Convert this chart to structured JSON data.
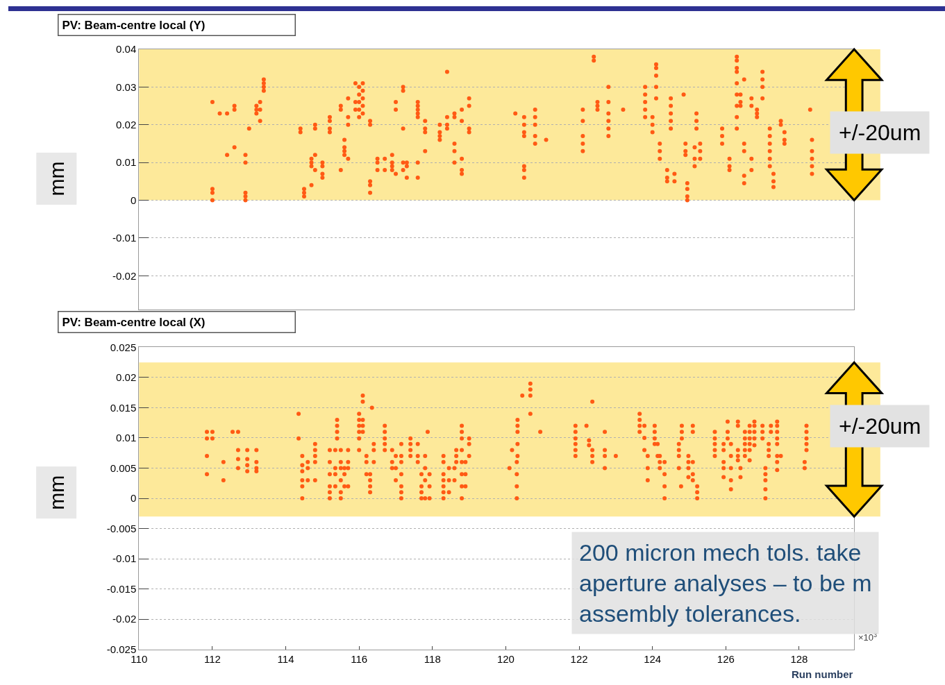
{
  "chart_data": [
    {
      "type": "scatter",
      "title": "PV: Beam-centre local (Y)",
      "ylabel": "mm",
      "color": "#ff5a14",
      "marker": "circle",
      "grid": "y",
      "tick_labels": "y",
      "xlim": [
        110,
        129.5
      ],
      "ylim": [
        -0.029,
        0.04
      ],
      "yticks": [
        0.04,
        0.03,
        0.02,
        0.01,
        0,
        -0.01,
        -0.02
      ],
      "bands": [
        {
          "axis": "y",
          "from": 0,
          "to": 0.04,
          "label": null,
          "color": "#fde99a"
        }
      ],
      "annotations": [
        "+/-20um"
      ],
      "x": [
        112.0,
        112.0,
        112.0,
        112.0,
        112.2,
        112.4,
        112.4,
        112.6,
        112.6,
        112.6,
        112.9,
        112.9,
        112.9,
        112.9,
        112.9,
        113.0,
        113.2,
        113.2,
        113.2,
        113.3,
        113.3,
        113.3,
        113.4,
        113.4,
        113.4,
        113.4,
        114.5,
        114.5,
        114.5,
        114.4,
        114.4,
        114.7,
        114.7,
        114.7,
        114.7,
        114.8,
        114.8,
        114.8,
        114.8,
        115.0,
        115.0,
        115.0,
        115.0,
        115.2,
        115.2,
        115.2,
        115.2,
        115.5,
        115.5,
        115.5,
        115.6,
        115.6,
        115.6,
        115.6,
        115.7,
        115.7,
        115.7,
        115.7,
        115.9,
        115.9,
        115.9,
        116.0,
        116.0,
        116.0,
        116.0,
        116.0,
        116.1,
        116.1,
        116.1,
        116.1,
        116.1,
        116.3,
        116.3,
        116.3,
        116.3,
        116.3,
        116.5,
        116.5,
        116.5,
        116.7,
        116.7,
        116.9,
        116.9,
        116.9,
        116.9,
        117.0,
        117.0,
        117.0,
        117.2,
        117.2,
        117.2,
        117.2,
        117.2,
        117.3,
        117.3,
        117.3,
        117.6,
        117.6,
        117.6,
        117.6,
        117.6,
        117.6,
        117.6,
        117.8,
        117.8,
        117.8,
        117.8,
        118.2,
        118.2,
        118.2,
        118.2,
        118.4,
        118.4,
        118.4,
        118.4,
        118.6,
        118.6,
        118.6,
        118.6,
        118.6,
        118.8,
        118.8,
        118.8,
        118.8,
        118.8,
        119.0,
        119.0,
        119.0,
        119.0,
        120.26,
        120.5,
        120.5,
        120.5,
        120.5,
        120.5,
        120.5,
        120.5,
        120.8,
        120.8,
        120.8,
        120.8,
        120.8,
        121.1,
        122.1,
        122.1,
        122.1,
        122.1,
        122.1,
        122.4,
        122.4,
        122.5,
        122.5,
        122.5,
        122.8,
        122.8,
        122.8,
        122.8,
        122.8,
        122.8,
        123.2,
        123.8,
        123.8,
        123.8,
        123.8,
        123.8,
        124.0,
        124.0,
        124.0,
        124.1,
        124.1,
        124.1,
        124.1,
        124.1,
        124.2,
        124.2,
        124.2,
        124.4,
        124.4,
        124.4,
        124.5,
        124.5,
        124.5,
        124.5,
        124.5,
        124.6,
        124.6,
        124.85,
        124.9,
        124.9,
        124.9,
        124.95,
        124.95,
        124.95,
        124.95,
        125.15,
        125.15,
        125.15,
        125.2,
        125.2,
        125.2,
        125.3,
        125.3,
        125.3,
        125.9,
        125.9,
        125.9,
        126.1,
        126.1,
        126.1,
        126.3,
        126.3,
        126.3,
        126.3,
        126.3,
        126.3,
        126.3,
        126.3,
        126.3,
        126.4,
        126.4,
        126.4,
        126.5,
        126.5,
        126.5,
        126.5,
        126.5,
        126.7,
        126.7,
        126.7,
        126.7,
        126.85,
        126.85,
        126.85,
        127.0,
        127.0,
        127.0,
        127.0,
        127.2,
        127.2,
        127.2,
        127.2,
        127.2,
        127.2,
        127.3,
        127.3,
        127.3,
        127.5,
        127.5,
        127.6,
        127.6,
        127.6,
        128.3,
        128.35,
        128.35,
        128.35,
        128.35,
        128.35
      ],
      "values": [
        0.026,
        0.003,
        0.002,
        0.0,
        0.023,
        0.012,
        0.023,
        0.014,
        0.024,
        0.025,
        0.012,
        0.01,
        0.002,
        0.001,
        0.0,
        0.019,
        0.023,
        0.024,
        0.025,
        0.021,
        0.026,
        0.024,
        0.029,
        0.03,
        0.031,
        0.032,
        0.003,
        0.002,
        0.001,
        0.019,
        0.018,
        0.011,
        0.01,
        0.009,
        0.004,
        0.019,
        0.02,
        0.012,
        0.008,
        0.01,
        0.009,
        0.007,
        0.006,
        0.021,
        0.022,
        0.019,
        0.018,
        0.025,
        0.024,
        0.008,
        0.016,
        0.014,
        0.013,
        0.012,
        0.027,
        0.022,
        0.02,
        0.011,
        0.031,
        0.026,
        0.024,
        0.03,
        0.028,
        0.026,
        0.024,
        0.022,
        0.031,
        0.029,
        0.027,
        0.025,
        0.023,
        0.021,
        0.02,
        0.005,
        0.004,
        0.002,
        0.011,
        0.01,
        0.008,
        0.011,
        0.008,
        0.012,
        0.01,
        0.009,
        0.008,
        0.026,
        0.024,
        0.007,
        0.03,
        0.029,
        0.019,
        0.01,
        0.008,
        0.01,
        0.009,
        0.006,
        0.026,
        0.025,
        0.024,
        0.023,
        0.022,
        0.01,
        0.006,
        0.021,
        0.019,
        0.018,
        0.013,
        0.02,
        0.018,
        0.017,
        0.016,
        0.034,
        0.022,
        0.02,
        0.019,
        0.023,
        0.022,
        0.015,
        0.013,
        0.01,
        0.024,
        0.021,
        0.011,
        0.008,
        0.007,
        0.027,
        0.025,
        0.019,
        0.018,
        0.023,
        0.022,
        0.02,
        0.018,
        0.017,
        0.009,
        0.008,
        0.006,
        0.024,
        0.022,
        0.02,
        0.017,
        0.015,
        0.016,
        0.024,
        0.021,
        0.017,
        0.015,
        0.013,
        0.038,
        0.037,
        0.026,
        0.025,
        0.024,
        0.03,
        0.026,
        0.023,
        0.021,
        0.019,
        0.017,
        0.024,
        0.03,
        0.028,
        0.026,
        0.024,
        0.022,
        0.022,
        0.02,
        0.018,
        0.036,
        0.035,
        0.033,
        0.03,
        0.027,
        0.015,
        0.013,
        0.011,
        0.008,
        0.006,
        0.005,
        0.027,
        0.025,
        0.023,
        0.021,
        0.019,
        0.007,
        0.005,
        0.028,
        0.015,
        0.013,
        0.012,
        0.0045,
        0.003,
        0.001,
        0.0,
        0.014,
        0.011,
        0.009,
        0.023,
        0.021,
        0.019,
        0.015,
        0.013,
        0.011,
        0.019,
        0.017,
        0.015,
        0.011,
        0.009,
        0.008,
        0.038,
        0.037,
        0.035,
        0.034,
        0.031,
        0.028,
        0.025,
        0.022,
        0.019,
        0.028,
        0.026,
        0.025,
        0.032,
        0.015,
        0.013,
        0.0065,
        0.0045,
        0.027,
        0.025,
        0.011,
        0.008,
        0.024,
        0.023,
        0.022,
        0.034,
        0.032,
        0.03,
        0.027,
        0.019,
        0.017,
        0.015,
        0.013,
        0.011,
        0.009,
        0.007,
        0.005,
        0.0035,
        0.021,
        0.02,
        0.018,
        0.016,
        0.015,
        0.024,
        0.016,
        0.013,
        0.011,
        0.009,
        0.007
      ]
    },
    {
      "type": "scatter",
      "title": "PV: Beam-centre local (X)",
      "ylabel": "mm",
      "xlabel": "Run number",
      "color": "#ff5a14",
      "marker": "circle",
      "grid": "y",
      "xlim": [
        110,
        129.5
      ],
      "xticks": [
        110,
        112,
        114,
        116,
        118,
        120,
        122,
        124,
        126,
        128
      ],
      "ylim": [
        -0.025,
        0.025
      ],
      "yticks": [
        0.025,
        0.02,
        0.015,
        0.01,
        0.005,
        0,
        -0.005,
        -0.01,
        -0.015,
        -0.02,
        -0.025
      ],
      "bands": [
        {
          "axis": "y",
          "from": -0.003,
          "to": 0.0225,
          "label": null,
          "color": "#fde99a"
        }
      ],
      "annotations": [
        "+/-20um",
        "×10$^{3}$",
        "200 micron mech tols. take\naperture analyses – to be m\nassembly tolerances."
      ],
      "x": [
        111.85,
        111.85,
        111.85,
        111.85,
        112.0,
        112.0,
        112.3,
        112.3,
        112.55,
        112.7,
        112.7,
        112.7,
        112.7,
        112.95,
        112.95,
        112.95,
        112.95,
        113.2,
        113.2,
        113.2,
        113.2,
        114.35,
        114.35,
        114.45,
        114.45,
        114.45,
        114.45,
        114.45,
        114.45,
        114.6,
        114.6,
        114.6,
        114.8,
        114.8,
        114.8,
        114.8,
        114.8,
        115.2,
        115.2,
        115.2,
        115.2,
        115.2,
        115.2,
        115.35,
        115.35,
        115.35,
        115.35,
        115.4,
        115.4,
        115.4,
        115.4,
        115.5,
        115.5,
        115.5,
        115.5,
        115.5,
        115.5,
        115.6,
        115.6,
        115.6,
        115.7,
        115.7,
        115.7,
        115.7,
        116.0,
        116.0,
        116.0,
        116.0,
        116.0,
        116.0,
        116.1,
        116.1,
        116.1,
        116.1,
        116.1,
        116.2,
        116.2,
        116.2,
        116.3,
        116.3,
        116.3,
        116.3,
        116.35,
        116.4,
        116.4,
        116.4,
        116.7,
        116.7,
        116.7,
        116.7,
        116.7,
        116.9,
        116.9,
        116.9,
        117.0,
        117.0,
        117.0,
        117.15,
        117.15,
        117.15,
        117.15,
        117.15,
        117.15,
        117.15,
        117.4,
        117.4,
        117.4,
        117.4,
        117.6,
        117.6,
        117.6,
        117.7,
        117.7,
        117.7,
        117.7,
        117.8,
        117.8,
        117.8,
        117.8,
        117.87,
        117.92,
        117.92,
        117.92,
        118.3,
        118.3,
        118.3,
        118.3,
        118.3,
        118.3,
        118.3,
        118.45,
        118.45,
        118.45,
        118.6,
        118.6,
        118.65,
        118.65,
        118.65,
        118.8,
        118.8,
        118.8,
        118.8,
        118.8,
        118.8,
        118.8,
        118.8,
        118.9,
        118.9,
        118.9,
        119.0,
        119.0,
        119.0,
        120.1,
        120.17,
        120.3,
        120.3,
        120.3,
        120.3,
        120.32,
        120.32,
        120.32,
        120.32,
        120.32,
        120.45,
        120.67,
        120.67,
        120.67,
        120.67,
        120.94,
        121.9,
        121.9,
        121.9,
        121.9,
        121.9,
        121.9,
        122.2,
        122.27,
        122.27,
        122.36,
        122.36,
        122.36,
        122.36,
        122.7,
        122.7,
        122.7,
        122.7,
        123.0,
        123.65,
        123.65,
        123.65,
        123.65,
        123.78,
        123.78,
        123.78,
        123.87,
        123.87,
        123.87,
        124.06,
        124.06,
        124.06,
        124.06,
        124.14,
        124.14,
        124.2,
        124.2,
        124.2,
        124.33,
        124.33,
        124.33,
        124.33,
        124.72,
        124.72,
        124.72,
        124.72,
        124.78,
        124.8,
        124.8,
        124.8,
        124.98,
        124.98,
        124.98,
        124.98,
        125.1,
        125.1,
        125.1,
        125.1,
        125.1,
        125.22,
        125.22,
        125.22,
        125.7,
        125.7,
        125.7,
        125.7,
        125.7,
        125.94,
        125.94,
        125.94,
        125.94,
        125.94,
        126.05,
        126.05,
        126.05,
        126.14,
        126.14,
        126.14,
        126.14,
        126.14,
        126.33,
        126.33,
        126.33,
        126.33,
        126.33,
        126.4,
        126.4,
        126.52,
        126.52,
        126.52,
        126.52,
        126.52,
        126.65,
        126.65,
        126.65,
        126.65,
        126.65,
        126.65,
        126.78,
        126.78,
        126.78,
        126.78,
        126.78,
        127.0,
        127.0,
        127.0,
        127.08,
        127.08,
        127.08,
        127.08,
        127.08,
        127.17,
        127.17,
        127.17,
        127.23,
        127.23,
        127.4,
        127.4,
        127.4,
        127.4,
        127.4,
        127.4,
        127.4,
        127.4,
        127.5,
        128.15,
        128.15,
        128.2,
        128.2,
        128.2,
        128.2,
        128.2
      ],
      "values": [
        0.011,
        0.0099,
        0.007,
        0.004,
        0.011,
        0.0099,
        0.006,
        0.003,
        0.011,
        0.011,
        0.008,
        0.0065,
        0.005,
        0.008,
        0.0065,
        0.0055,
        0.0045,
        0.008,
        0.006,
        0.005,
        0.0045,
        0.014,
        0.0099,
        0.007,
        0.0055,
        0.0045,
        0.003,
        0.002,
        0.0,
        0.006,
        0.005,
        0.003,
        0.009,
        0.008,
        0.007,
        0.006,
        0.003,
        0.008,
        0.006,
        0.004,
        0.002,
        0.001,
        0.0,
        0.008,
        0.005,
        0.004,
        0.002,
        0.013,
        0.012,
        0.011,
        0.0099,
        0.008,
        0.006,
        0.005,
        0.003,
        0.001,
        0.0,
        0.005,
        0.004,
        0.002,
        0.008,
        0.006,
        0.005,
        0.002,
        0.014,
        0.013,
        0.012,
        0.011,
        0.0099,
        0.008,
        0.017,
        0.016,
        0.013,
        0.012,
        0.011,
        0.007,
        0.006,
        0.004,
        0.004,
        0.003,
        0.002,
        0.001,
        0.015,
        0.009,
        0.008,
        0.006,
        0.012,
        0.011,
        0.0099,
        0.009,
        0.008,
        0.008,
        0.006,
        0.005,
        0.007,
        0.005,
        0.003,
        0.009,
        0.007,
        0.006,
        0.004,
        0.002,
        0.001,
        0.0,
        0.0099,
        0.009,
        0.008,
        0.007,
        0.009,
        0.007,
        0.006,
        0.004,
        0.002,
        0.001,
        0.0,
        0.007,
        0.005,
        0.003,
        0.0,
        0.011,
        0.004,
        0.002,
        0.0,
        0.007,
        0.006,
        0.004,
        0.003,
        0.002,
        0.001,
        0.0,
        0.005,
        0.003,
        0.001,
        0.005,
        0.003,
        0.008,
        0.007,
        0.006,
        0.012,
        0.011,
        0.0099,
        0.008,
        0.006,
        0.004,
        0.002,
        0.0,
        0.006,
        0.004,
        0.002,
        0.0099,
        0.009,
        0.007,
        0.005,
        0.008,
        0.006,
        0.004,
        0.002,
        0.0,
        0.013,
        0.012,
        0.011,
        0.009,
        0.007,
        0.017,
        0.019,
        0.018,
        0.017,
        0.014,
        0.011,
        0.012,
        0.011,
        0.0099,
        0.009,
        0.008,
        0.007,
        0.012,
        0.0096,
        0.0088,
        0.016,
        0.008,
        0.007,
        0.006,
        0.011,
        0.008,
        0.007,
        0.005,
        0.007,
        0.014,
        0.013,
        0.012,
        0.011,
        0.012,
        0.01,
        0.008,
        0.007,
        0.005,
        0.003,
        0.012,
        0.011,
        0.0099,
        0.009,
        0.009,
        0.007,
        0.007,
        0.006,
        0.005,
        0.006,
        0.004,
        0.002,
        0.0,
        0.009,
        0.008,
        0.007,
        0.005,
        0.002,
        0.012,
        0.011,
        0.0099,
        0.007,
        0.006,
        0.005,
        0.0035,
        0.012,
        0.011,
        0.006,
        0.004,
        0.003,
        0.002,
        0.001,
        0.0,
        0.011,
        0.0099,
        0.009,
        0.008,
        0.007,
        0.009,
        0.008,
        0.006,
        0.005,
        0.0035,
        0.0127,
        0.011,
        0.0099,
        0.009,
        0.007,
        0.005,
        0.003,
        0.0015,
        0.0127,
        0.012,
        0.008,
        0.007,
        0.0063,
        0.005,
        0.0035,
        0.011,
        0.0099,
        0.009,
        0.008,
        0.007,
        0.012,
        0.011,
        0.0099,
        0.009,
        0.008,
        0.0063,
        0.0127,
        0.012,
        0.011,
        0.0099,
        0.0088,
        0.012,
        0.011,
        0.0099,
        0.005,
        0.004,
        0.003,
        0.0015,
        0.0,
        0.009,
        0.008,
        0.007,
        0.012,
        0.011,
        0.0127,
        0.012,
        0.011,
        0.0099,
        0.009,
        0.007,
        0.006,
        0.0047,
        0.007,
        0.006,
        0.005,
        0.012,
        0.011,
        0.0099,
        0.009,
        0.008
      ]
    }
  ]
}
